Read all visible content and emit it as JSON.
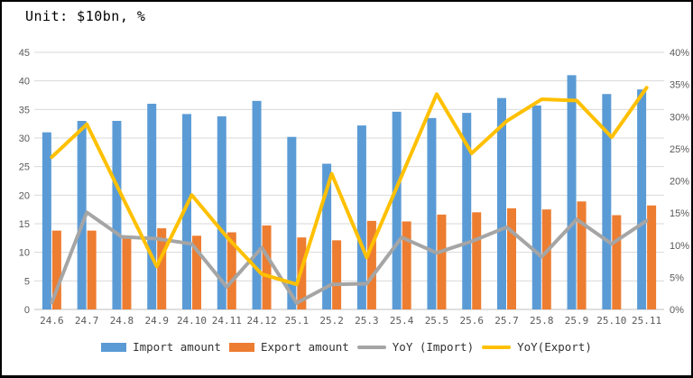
{
  "title": "Unit: $10bn, %",
  "colors": {
    "import": "#5B9BD5",
    "export": "#ED7D31",
    "yoy_import": "#A5A5A5",
    "yoy_export": "#FFC000",
    "gridline": "#D9D9D9",
    "axis_line": "#BFBFBF",
    "axis_text": "#595959"
  },
  "chart_data": {
    "type": "bar+line combo",
    "title": "Unit: $10bn, %",
    "grid": true,
    "legend_position": "bottom",
    "categories": [
      "24.6",
      "24.7",
      "24.8",
      "24.9",
      "24.10",
      "24.11",
      "24.12",
      "25.1",
      "25.2",
      "25.3",
      "25.4",
      "25.5",
      "25.6",
      "25.7",
      "25.8",
      "25.9",
      "25.10",
      "25.11"
    ],
    "series": [
      {
        "name": "Import amount",
        "type": "bar",
        "axis": "left",
        "color_key": "import",
        "values": [
          31,
          33,
          33,
          36,
          34.2,
          33.8,
          36.5,
          30.2,
          25.5,
          32.2,
          34.6,
          33.5,
          34.4,
          37,
          35.7,
          41,
          37.7,
          38.5
        ]
      },
      {
        "name": "Export amount",
        "type": "bar",
        "axis": "left",
        "color_key": "export",
        "values": [
          13.8,
          13.8,
          12.9,
          14.2,
          12.9,
          13.5,
          14.7,
          12.6,
          12.1,
          15.5,
          15.4,
          16.6,
          17,
          17.7,
          17.5,
          18.9,
          16.5,
          18.2
        ]
      },
      {
        "name": "YoY (Import)",
        "type": "line",
        "axis": "right",
        "color_key": "yoy_import",
        "values": [
          1.1,
          15.1,
          11.3,
          11,
          10.2,
          3.5,
          9.6,
          1,
          3.9,
          4,
          11.2,
          8.8,
          10.6,
          12.8,
          8.2,
          14,
          10.2,
          13.8
        ]
      },
      {
        "name": "YoY(Export)",
        "type": "line",
        "axis": "right",
        "color_key": "yoy_export",
        "values": [
          23.7,
          28.8,
          17.7,
          6.7,
          17.8,
          11.3,
          5.5,
          3.9,
          21.1,
          8.1,
          20.8,
          33.5,
          24.3,
          29.3,
          32.7,
          32.5,
          26.8,
          34.5
        ]
      }
    ],
    "left_axis": {
      "min": 0,
      "max": 45,
      "step": 5,
      "ticks": [
        "45",
        "40",
        "35",
        "30",
        "25",
        "20",
        "15",
        "10",
        "5",
        "0"
      ]
    },
    "right_axis": {
      "min": 0,
      "max": 40,
      "step": 5,
      "ticks": [
        "40%",
        "35%",
        "30%",
        "25%",
        "20%",
        "15%",
        "10%",
        "5%",
        "0%"
      ]
    }
  }
}
